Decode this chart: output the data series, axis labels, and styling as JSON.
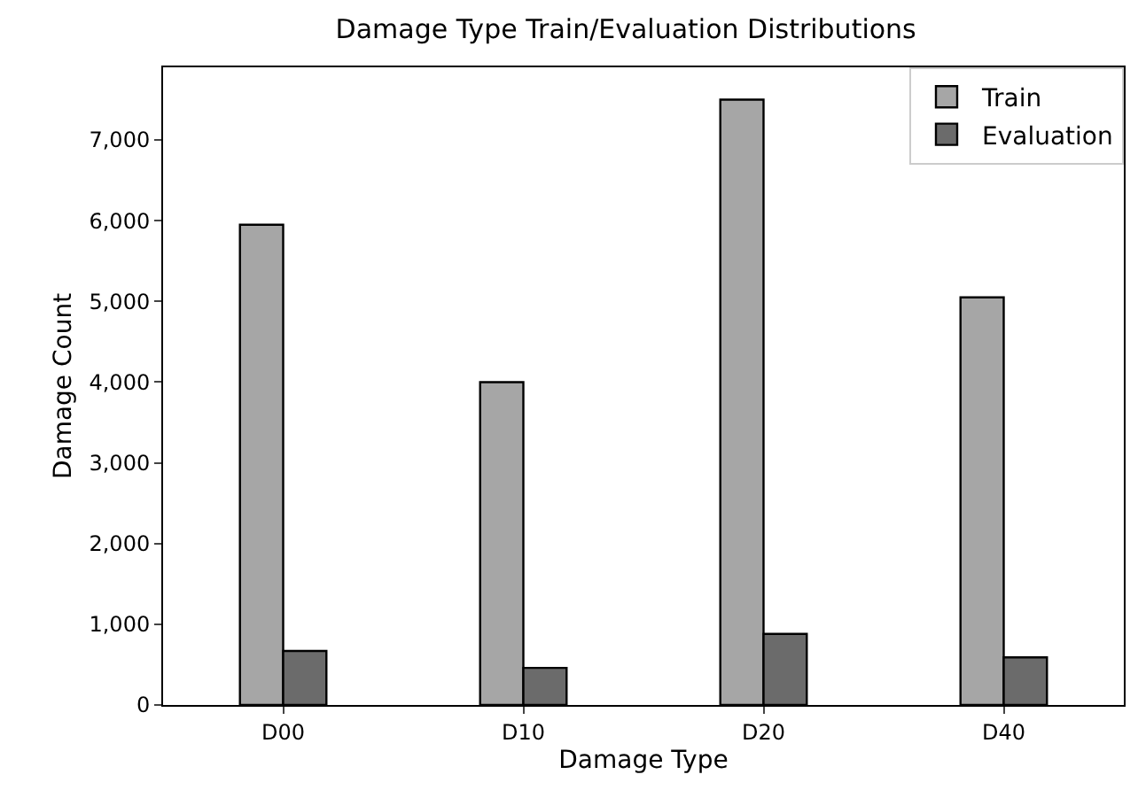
{
  "chart_data": {
    "type": "bar",
    "title": "Damage Type Train/Evaluation Distributions",
    "xlabel": "Damage Type",
    "ylabel": "Damage Count",
    "categories": [
      "D00",
      "D10",
      "D20",
      "D40"
    ],
    "series": [
      {
        "name": "Train",
        "color": "#a6a6a6",
        "values": [
          5950,
          4000,
          7500,
          5050
        ]
      },
      {
        "name": "Evaluation",
        "color": "#6b6b6b",
        "values": [
          670,
          460,
          880,
          590
        ]
      }
    ],
    "ylim": [
      0,
      7900
    ],
    "yticks": [
      0,
      {
        "value": 1000,
        "label": "1,000"
      },
      {
        "value": 2000,
        "label": "2,000"
      },
      {
        "value": 3000,
        "label": "3,000"
      },
      {
        "value": 4000,
        "label": "4,000"
      },
      {
        "value": 5000,
        "label": "5,000"
      },
      {
        "value": 6000,
        "label": "6,000"
      },
      {
        "value": 7000,
        "label": "7,000"
      }
    ],
    "grid": false,
    "legend": "top right"
  }
}
